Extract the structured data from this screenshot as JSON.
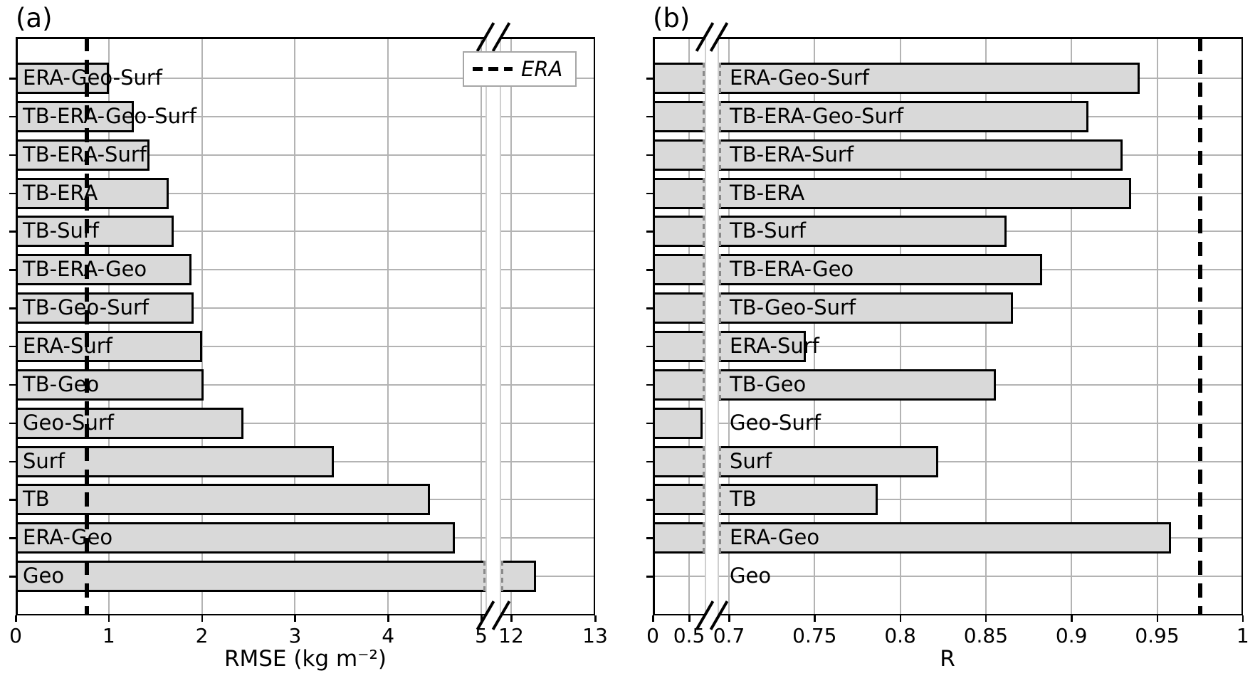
{
  "figure": {
    "background": "#ffffff",
    "panels": [
      {
        "title": "(a)",
        "xlabel": "RMSE (kg m⁻²)"
      },
      {
        "title": "(b)",
        "xlabel": "R"
      }
    ],
    "legend": {
      "label": "ERA",
      "symbol": "dashed-line",
      "position": "upper-right-of-panel-a"
    }
  },
  "colors": {
    "bar_fill": "#d9d9d9",
    "bar_edge": "#000000",
    "grid": "#b3b3b3",
    "reference_line": "#000000",
    "legend_border": "#a6a6a6",
    "break_guide": "#cfcfcf",
    "text": "#000000"
  },
  "chart_data": [
    {
      "type": "bar",
      "orientation": "horizontal",
      "title": "(a)",
      "xlabel": "RMSE (kg m⁻²)",
      "grid": true,
      "bar_color": "lightgray",
      "categories": [
        "ERA-Geo-Surf",
        "TB-ERA-Geo-Surf",
        "TB-ERA-Surf",
        "TB-ERA",
        "TB-Surf",
        "TB-ERA-Geo",
        "TB-Geo-Surf",
        "ERA-Surf",
        "TB-Geo",
        "Geo-Surf",
        "Surf",
        "TB",
        "ERA-Geo",
        "Geo"
      ],
      "values": [
        1.0,
        1.27,
        1.44,
        1.64,
        1.7,
        1.89,
        1.91,
        2.0,
        2.02,
        2.45,
        3.42,
        4.45,
        4.72,
        12.3
      ],
      "reference_line": {
        "label": "ERA",
        "value": 0.765,
        "style": "dashed",
        "color": "black"
      },
      "axis_break": {
        "left_segment_max": 5,
        "right_segment_min": 12
      },
      "xticks_left_segment": [
        0,
        1,
        2,
        3,
        4,
        5
      ],
      "xticks_right_segment": [
        12,
        13
      ],
      "xlim": [
        0,
        13
      ],
      "legend_position": "upper right"
    },
    {
      "type": "bar",
      "orientation": "horizontal",
      "title": "(b)",
      "xlabel": "R",
      "grid": true,
      "bar_color": "lightgray",
      "categories": [
        "ERA-Geo-Surf",
        "TB-ERA-Geo-Surf",
        "TB-ERA-Surf",
        "TB-ERA",
        "TB-Surf",
        "TB-ERA-Geo",
        "TB-Geo-Surf",
        "ERA-Surf",
        "TB-Geo",
        "Geo-Surf",
        "Surf",
        "TB",
        "ERA-Geo",
        "Geo"
      ],
      "values": [
        0.94,
        0.91,
        0.93,
        0.935,
        0.862,
        0.883,
        0.866,
        0.745,
        0.856,
        0.69,
        0.822,
        0.787,
        0.958,
        null
      ],
      "reference_line": {
        "label": "ERA",
        "value": 0.975,
        "style": "dashed",
        "color": "black"
      },
      "axis_break": {
        "left_segment_max": 0.55,
        "right_segment_min": 0.695
      },
      "xticks_left_segment": [
        0,
        0.5
      ],
      "xticks_right_segment": [
        0.7,
        0.75,
        0.8,
        0.85,
        0.9,
        0.95,
        1
      ],
      "xlim": [
        0,
        1
      ],
      "note_missing_bars": "Geo has no visible bar (R below broken-axis range); Geo-Surf bar ends at the axis break with a solid edge"
    }
  ]
}
